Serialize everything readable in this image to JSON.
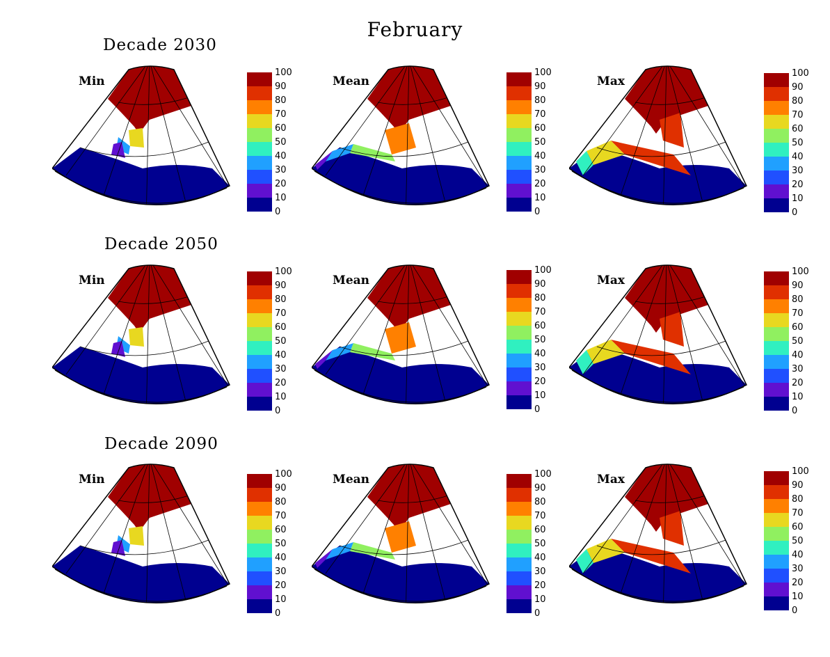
{
  "title": "February",
  "rows": [
    {
      "label": "Decade 2030"
    },
    {
      "label": "Decade 2050"
    },
    {
      "label": "Decade 2090"
    }
  ],
  "panels": [
    "Min",
    "Mean",
    "Max"
  ],
  "colorbar": {
    "ticks": [
      "100",
      "90",
      "80",
      "70",
      "60",
      "50",
      "40",
      "30",
      "20",
      "10",
      "0"
    ],
    "colors": [
      "#a00000",
      "#e03000",
      "#ff8000",
      "#e8d820",
      "#90f060",
      "#30f0c0",
      "#20a0ff",
      "#2050ff",
      "#6010d0",
      "#000090"
    ]
  },
  "colors": {
    "ice_high": "#a00000",
    "ocean_zero": "#000090",
    "land": "#ffffff"
  }
}
